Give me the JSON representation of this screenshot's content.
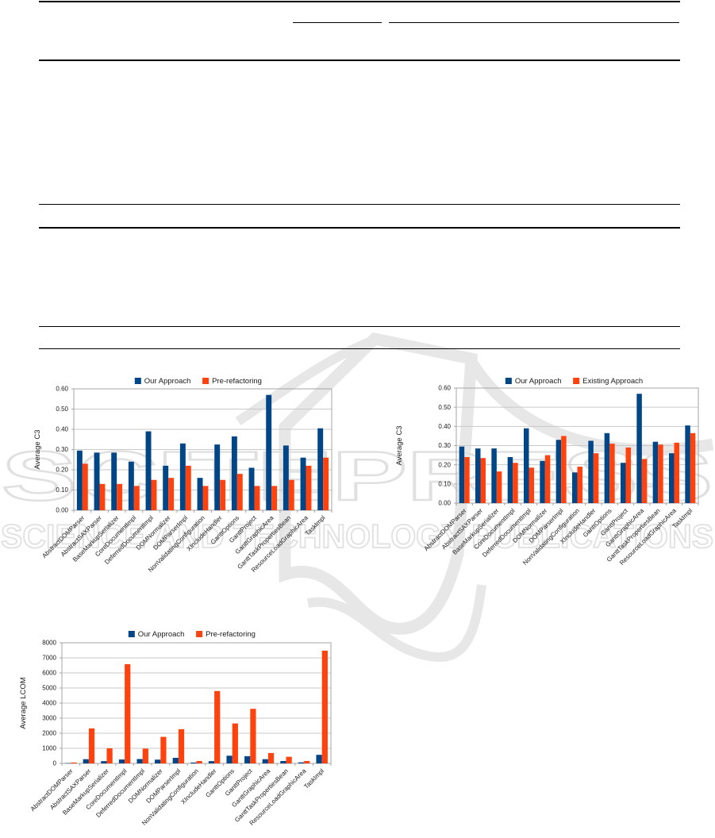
{
  "watermark": {
    "line1": "SCITEPRESS",
    "line2": "SCIENCE AND TECHNOLOGY PUBLICATIONS"
  },
  "colors": {
    "series1": "#004586",
    "series2": "#ff420e",
    "grid": "#c9c9c9",
    "plot_border": "#a6a6a6",
    "text": "#1a1a1a",
    "watermark": "#e3e3e3"
  },
  "chart_data": [
    {
      "type": "bar",
      "title": "",
      "ylabel": "Average C3",
      "xlabel": "",
      "ylim": [
        0,
        0.6
      ],
      "yticks": [
        "0.00",
        "0.10",
        "0.20",
        "0.30",
        "0.40",
        "0.50",
        "0.60"
      ],
      "grid": true,
      "legend_position": "top",
      "categories": [
        "AbstractDOMParser",
        "AbstractSAXParser",
        "BaseMarkupSerializer",
        "CoreDocumentImpl",
        "DeferredDocumentImpl",
        "DOMNormalizer",
        "DOMParserImpl",
        "NonValidatingConfiguration",
        "XIncludeHandler",
        "GanttOptions",
        "GanttProject",
        "GanttGraphicArea",
        "GanttTaskPropertiesBean",
        "ResourceLoadGraphicArea",
        "TaskImpl"
      ],
      "series": [
        {
          "name": "Our Approach",
          "values": [
            0.295,
            0.285,
            0.285,
            0.24,
            0.39,
            0.22,
            0.33,
            0.16,
            0.325,
            0.365,
            0.21,
            0.57,
            0.32,
            0.26,
            0.405
          ]
        },
        {
          "name": "Pre-refactoring",
          "values": [
            0.23,
            0.13,
            0.13,
            0.12,
            0.15,
            0.16,
            0.22,
            0.12,
            0.15,
            0.18,
            0.12,
            0.12,
            0.15,
            0.22,
            0.26
          ]
        }
      ]
    },
    {
      "type": "bar",
      "title": "",
      "ylabel": "Average C3",
      "xlabel": "",
      "ylim": [
        0,
        0.6
      ],
      "yticks": [
        "0.00",
        "0.10",
        "0.20",
        "0.30",
        "0.40",
        "0.50",
        "0.60"
      ],
      "grid": true,
      "legend_position": "top",
      "categories": [
        "AbstractDOMParser",
        "AbstractSAXParser",
        "BaseMarkupSerializer",
        "CoreDocumentImpl",
        "DeferredDocumentImpl",
        "DOMNormalizer",
        "DOMParserImpl",
        "NonValidatingConfiguration",
        "XIncludeHandler",
        "GanttOptions",
        "GanttProject",
        "GanttGraphicArea",
        "GanttTaskPropertiesBean",
        "ResourceLoadGraphicArea",
        "TaskImpl"
      ],
      "series": [
        {
          "name": "Our Approach",
          "values": [
            0.295,
            0.285,
            0.285,
            0.24,
            0.39,
            0.22,
            0.33,
            0.16,
            0.325,
            0.365,
            0.21,
            0.57,
            0.32,
            0.26,
            0.405
          ]
        },
        {
          "name": "Existing Approach",
          "values": [
            0.24,
            0.235,
            0.165,
            0.21,
            0.185,
            0.25,
            0.35,
            0.19,
            0.26,
            0.31,
            0.29,
            0.23,
            0.305,
            0.315,
            0.365
          ]
        }
      ]
    },
    {
      "type": "bar",
      "title": "",
      "ylabel": "Average LCOM",
      "xlabel": "",
      "ylim": [
        0,
        8000
      ],
      "yticks": [
        "0",
        "1000",
        "2000",
        "3000",
        "4000",
        "5000",
        "6000",
        "7000",
        "8000"
      ],
      "grid": true,
      "legend_position": "top",
      "categories": [
        "AbstractDOMParser",
        "AbstractSAXParser",
        "BaseMarkupSerializer",
        "CoreDocumentImpl",
        "DeferredDocumentImpl",
        "DOMNormalizer",
        "DOMParserImpl",
        "NonValidatingConfiguration",
        "XIncludeHandler",
        "GanttOptions",
        "GanttProject",
        "GanttGraphicArea",
        "GanttTaskPropertiesBean",
        "ResourceLoadGraphicArea",
        "TaskImpl"
      ],
      "series": [
        {
          "name": "Our Approach",
          "values": [
            20,
            280,
            150,
            260,
            290,
            250,
            370,
            60,
            150,
            510,
            480,
            280,
            160,
            70,
            570
          ]
        },
        {
          "name": "Pre-refactoring",
          "values": [
            60,
            2320,
            1000,
            6580,
            980,
            1760,
            2270,
            160,
            4800,
            2650,
            3620,
            690,
            440,
            160,
            7480
          ]
        }
      ]
    }
  ]
}
